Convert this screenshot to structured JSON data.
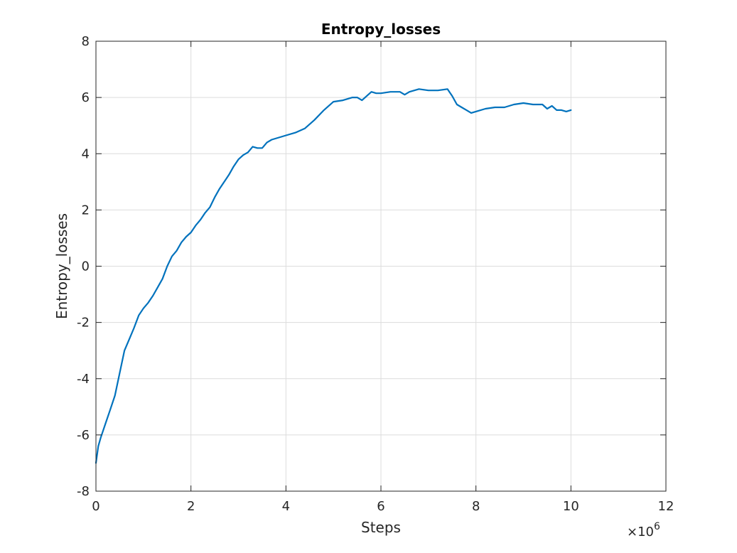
{
  "chart_data": {
    "type": "line",
    "title": "Entropy_losses",
    "xlabel": "Steps",
    "ylabel": "Entropy_losses",
    "x_exponent_label": "×10",
    "x_exponent_power": "6",
    "xlim": [
      0,
      12
    ],
    "ylim": [
      -8,
      8
    ],
    "xticks": [
      0,
      2,
      4,
      6,
      8,
      10,
      12
    ],
    "yticks": [
      -8,
      -6,
      -4,
      -2,
      0,
      2,
      4,
      6,
      8
    ],
    "xtick_labels": [
      "0",
      "2",
      "4",
      "6",
      "8",
      "10",
      "12"
    ],
    "ytick_labels": [
      "-8",
      "-6",
      "-4",
      "-2",
      "0",
      "2",
      "4",
      "6",
      "8"
    ],
    "grid": true,
    "x_multiplier": 1000000,
    "series": [
      {
        "color": "#0072BD",
        "x": [
          0,
          0.05,
          0.1,
          0.2,
          0.3,
          0.4,
          0.5,
          0.6,
          0.7,
          0.8,
          0.9,
          1.0,
          1.1,
          1.2,
          1.3,
          1.4,
          1.5,
          1.6,
          1.7,
          1.8,
          1.9,
          2.0,
          2.1,
          2.2,
          2.3,
          2.4,
          2.5,
          2.6,
          2.7,
          2.8,
          2.9,
          3.0,
          3.1,
          3.2,
          3.3,
          3.4,
          3.5,
          3.6,
          3.7,
          3.8,
          3.9,
          4.0,
          4.2,
          4.4,
          4.6,
          4.8,
          5.0,
          5.2,
          5.4,
          5.5,
          5.6,
          5.7,
          5.8,
          5.9,
          6.0,
          6.2,
          6.4,
          6.5,
          6.6,
          6.8,
          7.0,
          7.2,
          7.4,
          7.5,
          7.6,
          7.7,
          7.8,
          7.9,
          8.0,
          8.2,
          8.4,
          8.6,
          8.8,
          9.0,
          9.2,
          9.4,
          9.5,
          9.6,
          9.7,
          9.8,
          9.9,
          10.0
        ],
        "y": [
          -7.0,
          -6.4,
          -6.1,
          -5.6,
          -5.1,
          -4.6,
          -3.8,
          -3.0,
          -2.6,
          -2.2,
          -1.75,
          -1.5,
          -1.3,
          -1.05,
          -0.75,
          -0.45,
          0.0,
          0.35,
          0.55,
          0.85,
          1.05,
          1.2,
          1.45,
          1.65,
          1.9,
          2.1,
          2.45,
          2.75,
          3.0,
          3.25,
          3.55,
          3.8,
          3.95,
          4.05,
          4.25,
          4.2,
          4.2,
          4.4,
          4.5,
          4.55,
          4.6,
          4.65,
          4.75,
          4.9,
          5.2,
          5.55,
          5.85,
          5.9,
          6.0,
          6.0,
          5.9,
          6.05,
          6.2,
          6.15,
          6.15,
          6.2,
          6.2,
          6.1,
          6.2,
          6.3,
          6.25,
          6.25,
          6.3,
          6.05,
          5.75,
          5.65,
          5.55,
          5.45,
          5.5,
          5.6,
          5.65,
          5.65,
          5.75,
          5.8,
          5.75,
          5.75,
          5.6,
          5.7,
          5.55,
          5.55,
          5.5,
          5.55
        ]
      }
    ]
  }
}
